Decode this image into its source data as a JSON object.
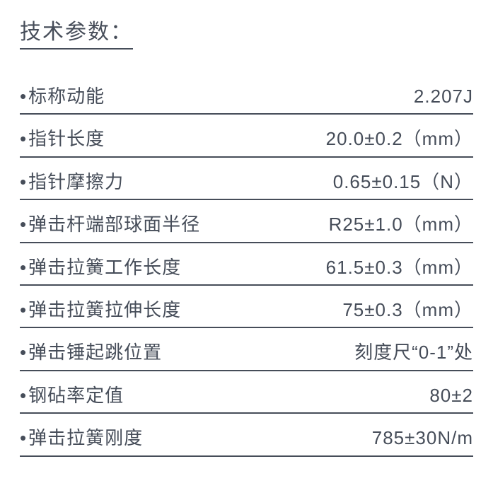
{
  "title": "技术参数：",
  "text_color": "#464d59",
  "background_color": "#ffffff",
  "title_fontsize": 30,
  "row_fontsize": 26,
  "underline_color": "#464d59",
  "underline_width": 2,
  "specs": [
    {
      "label": "标称动能",
      "value": "2.207J"
    },
    {
      "label": "指针长度",
      "value": "20.0±0.2（mm）"
    },
    {
      "label": "指针摩擦力",
      "value": "0.65±0.15（N）"
    },
    {
      "label": "弹击杆端部球面半径",
      "value": "R25±1.0（mm）"
    },
    {
      "label": "弹击拉簧工作长度",
      "value": "61.5±0.3（mm）"
    },
    {
      "label": "弹击拉簧拉伸长度",
      "value": "75±0.3（mm）"
    },
    {
      "label": "弹击锤起跳位置",
      "value": "刻度尺“0-1”处"
    },
    {
      "label": "钢砧率定值",
      "value": "80±2"
    },
    {
      "label": "弹击拉簧刚度",
      "value": "785±30N/m"
    }
  ]
}
